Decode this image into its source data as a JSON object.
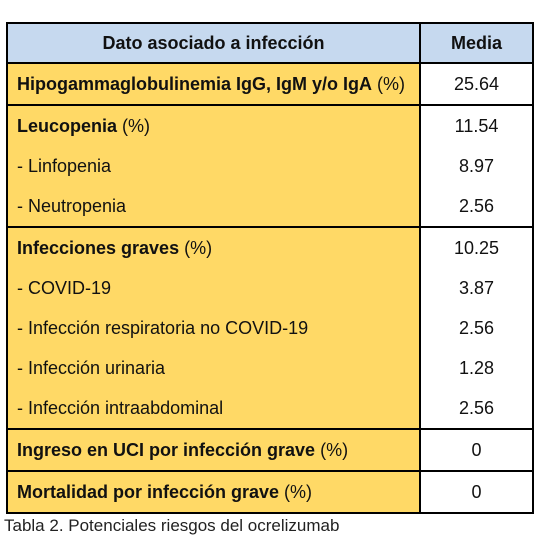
{
  "table": {
    "headers": {
      "label": "Dato asociado a infección",
      "value": "Media"
    },
    "groups": [
      {
        "rows": [
          {
            "bold": "Hipogammaglobulinemia IgG, IgM y/o IgA",
            "rest": " (%)",
            "value": "25.64"
          }
        ]
      },
      {
        "rows": [
          {
            "bold": "Leucopenia",
            "rest": " (%)",
            "value": "11.54"
          },
          {
            "bold": "",
            "rest": "- Linfopenia",
            "value": "8.97"
          },
          {
            "bold": "",
            "rest": "- Neutropenia",
            "value": "2.56"
          }
        ]
      },
      {
        "rows": [
          {
            "bold": "Infecciones graves",
            "rest": " (%)",
            "value": "10.25"
          },
          {
            "bold": "",
            "rest": "- COVID-19",
            "value": "3.87"
          },
          {
            "bold": "",
            "rest": "- Infección respiratoria no COVID-19",
            "value": "2.56"
          },
          {
            "bold": "",
            "rest": "- Infección urinaria",
            "value": "1.28"
          },
          {
            "bold": "",
            "rest": "- Infección intraabdominal",
            "value": "2.56"
          }
        ]
      },
      {
        "rows": [
          {
            "bold": "Ingreso en UCI por infección grave",
            "rest": " (%)",
            "value": "0"
          }
        ]
      },
      {
        "rows": [
          {
            "bold": "Mortalidad por infección grave",
            "rest": " (%)",
            "value": "0"
          }
        ]
      }
    ]
  },
  "caption": "Tabla 2. Potenciales riesgos del ocrelizumab"
}
